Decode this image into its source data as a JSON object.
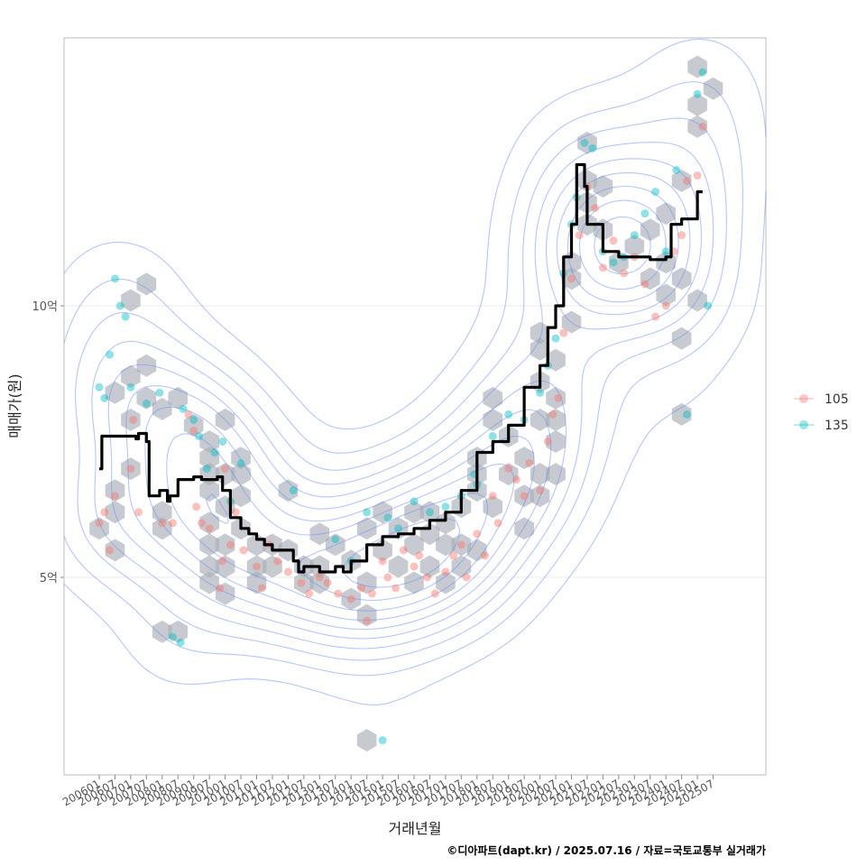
{
  "chart_data": {
    "type": "scatter",
    "xlabel": "거래년월",
    "ylabel": "매매가(원)",
    "caption": "©디아파트(dapt.kr) / 2025.07.16 / 자료=국토교통부 실거래가",
    "x_ticks": [
      "200601",
      "200607",
      "200701",
      "200707",
      "200801",
      "200807",
      "200901",
      "200907",
      "201001",
      "201007",
      "201101",
      "201107",
      "201201",
      "201207",
      "201301",
      "201307",
      "201401",
      "201407",
      "201501",
      "201507",
      "201601",
      "201607",
      "201701",
      "201707",
      "201801",
      "201807",
      "201901",
      "201907",
      "202001",
      "202007",
      "202101",
      "202107",
      "202201",
      "202207",
      "202301",
      "202307",
      "202401",
      "202407",
      "202501",
      "202507"
    ],
    "y_ticks": [
      {
        "value": 5,
        "label": "5억"
      },
      {
        "value": 10,
        "label": "10억"
      }
    ],
    "ylim": [
      1.3,
      14.8
    ],
    "grid": true,
    "legend": {
      "position": "right",
      "entries": [
        {
          "name": "105",
          "color": "#F8766D"
        },
        {
          "name": "135",
          "color": "#00BFC4"
        }
      ]
    },
    "contour_color": "#6C8EF5",
    "hex_color": "#A9AFB8",
    "trend_color": "#000000",
    "trend_line": [
      [
        "200601",
        7.0
      ],
      [
        "200602",
        7.6
      ],
      [
        "200607",
        7.6
      ],
      [
        "200701",
        7.6
      ],
      [
        "200703",
        7.55
      ],
      [
        "200704",
        7.65
      ],
      [
        "200707",
        7.5
      ],
      [
        "200708",
        6.5
      ],
      [
        "200710",
        6.5
      ],
      [
        "200712",
        6.6
      ],
      [
        "200801",
        6.6
      ],
      [
        "200803",
        6.4
      ],
      [
        "200804",
        6.5
      ],
      [
        "200807",
        6.8
      ],
      [
        "200901",
        6.85
      ],
      [
        "200904",
        6.8
      ],
      [
        "200907",
        6.8
      ],
      [
        "200910",
        6.85
      ],
      [
        "200912",
        6.6
      ],
      [
        "201003",
        6.1
      ],
      [
        "201007",
        5.9
      ],
      [
        "201010",
        5.8
      ],
      [
        "201101",
        5.7
      ],
      [
        "201104",
        5.6
      ],
      [
        "201107",
        5.5
      ],
      [
        "201201",
        5.5
      ],
      [
        "201203",
        5.3
      ],
      [
        "201205",
        5.1
      ],
      [
        "201207",
        5.2
      ],
      [
        "201301",
        5.1
      ],
      [
        "201307",
        5.2
      ],
      [
        "201310",
        5.1
      ],
      [
        "201401",
        5.3
      ],
      [
        "201404",
        5.3
      ],
      [
        "201407",
        5.6
      ],
      [
        "201501",
        5.75
      ],
      [
        "201507",
        5.8
      ],
      [
        "201601",
        5.9
      ],
      [
        "201607",
        6.05
      ],
      [
        "201701",
        6.2
      ],
      [
        "201707",
        6.6
      ],
      [
        "201801",
        7.3
      ],
      [
        "201807",
        7.5
      ],
      [
        "201901",
        7.8
      ],
      [
        "201907",
        8.5
      ],
      [
        "202001",
        8.9
      ],
      [
        "202004",
        9.6
      ],
      [
        "202007",
        10.0
      ],
      [
        "202010",
        10.9
      ],
      [
        "202101",
        11.5
      ],
      [
        "202103",
        12.6
      ],
      [
        "202105",
        12.6
      ],
      [
        "202106",
        12.2
      ],
      [
        "202107",
        11.5
      ],
      [
        "202201",
        11.0
      ],
      [
        "202207",
        10.9
      ],
      [
        "202301",
        10.9
      ],
      [
        "202307",
        10.85
      ],
      [
        "202401",
        10.9
      ],
      [
        "202403",
        11.5
      ],
      [
        "202407",
        11.6
      ],
      [
        "202501",
        12.1
      ],
      [
        "202503",
        12.1
      ]
    ],
    "hexbins": [
      [
        "200601",
        5.9
      ],
      [
        "200607",
        6.2
      ],
      [
        "200607",
        6.6
      ],
      [
        "200701",
        7.0
      ],
      [
        "200701",
        7.9
      ],
      [
        "200607",
        8.4
      ],
      [
        "200701",
        8.7
      ],
      [
        "200707",
        8.9
      ],
      [
        "200701",
        10.1
      ],
      [
        "200707",
        10.4
      ],
      [
        "200607",
        5.5
      ],
      [
        "200801",
        6.2
      ],
      [
        "200801",
        5.9
      ],
      [
        "200707",
        8.3
      ],
      [
        "200801",
        8.1
      ],
      [
        "200807",
        8.3
      ],
      [
        "200901",
        7.8
      ],
      [
        "200907",
        7.5
      ],
      [
        "200907",
        7.2
      ],
      [
        "200907",
        6.9
      ],
      [
        "200907",
        6.6
      ],
      [
        "201001",
        6.9
      ],
      [
        "201001",
        6.3
      ],
      [
        "200907",
        6.0
      ],
      [
        "200907",
        5.6
      ],
      [
        "201001",
        5.6
      ],
      [
        "201001",
        5.2
      ],
      [
        "200907",
        5.2
      ],
      [
        "200907",
        4.9
      ],
      [
        "201001",
        4.7
      ],
      [
        "201001",
        7.9
      ],
      [
        "201007",
        7.2
      ],
      [
        "201007",
        6.9
      ],
      [
        "201007",
        6.5
      ],
      [
        "201007",
        5.9
      ],
      [
        "201101",
        5.6
      ],
      [
        "201101",
        5.2
      ],
      [
        "201101",
        4.9
      ],
      [
        "201107",
        5.6
      ],
      [
        "201107",
        5.2
      ],
      [
        "201201",
        5.5
      ],
      [
        "201201",
        6.6
      ],
      [
        "201207",
        5.2
      ],
      [
        "201207",
        4.9
      ],
      [
        "201301",
        5.2
      ],
      [
        "201301",
        4.9
      ],
      [
        "201301",
        5.8
      ],
      [
        "201307",
        5.6
      ],
      [
        "201401",
        4.6
      ],
      [
        "201401",
        5.3
      ],
      [
        "201407",
        4.3
      ],
      [
        "201407",
        4.9
      ],
      [
        "201407",
        5.9
      ],
      [
        "201501",
        6.2
      ],
      [
        "201501",
        5.5
      ],
      [
        "201507",
        5.2
      ],
      [
        "201507",
        5.9
      ],
      [
        "201601",
        5.6
      ],
      [
        "201601",
        6.2
      ],
      [
        "201601",
        4.9
      ],
      [
        "201607",
        5.2
      ],
      [
        "201607",
        5.8
      ],
      [
        "201607",
        6.2
      ],
      [
        "201701",
        5.6
      ],
      [
        "201701",
        6.0
      ],
      [
        "201701",
        4.9
      ],
      [
        "201707",
        5.2
      ],
      [
        "201707",
        5.6
      ],
      [
        "201707",
        6.3
      ],
      [
        "201801",
        5.5
      ],
      [
        "201801",
        6.6
      ],
      [
        "201801",
        6.9
      ],
      [
        "201801",
        7.2
      ],
      [
        "201807",
        6.3
      ],
      [
        "201807",
        7.9
      ],
      [
        "201807",
        8.3
      ],
      [
        "201901",
        7.6
      ],
      [
        "201901",
        6.9
      ],
      [
        "201907",
        7.2
      ],
      [
        "201907",
        6.5
      ],
      [
        "201907",
        5.9
      ],
      [
        "202001",
        6.9
      ],
      [
        "202001",
        6.5
      ],
      [
        "202001",
        7.9
      ],
      [
        "202001",
        8.6
      ],
      [
        "202001",
        9.2
      ],
      [
        "202001",
        9.5
      ],
      [
        "202007",
        7.5
      ],
      [
        "202007",
        7.9
      ],
      [
        "202007",
        8.3
      ],
      [
        "202007",
        9.0
      ],
      [
        "202007",
        6.9
      ],
      [
        "202101",
        9.7
      ],
      [
        "202101",
        10.5
      ],
      [
        "202101",
        10.8
      ],
      [
        "202107",
        11.5
      ],
      [
        "202107",
        11.9
      ],
      [
        "202107",
        12.3
      ],
      [
        "202107",
        13.0
      ],
      [
        "202201",
        12.2
      ],
      [
        "202201",
        11.4
      ],
      [
        "202207",
        10.8
      ],
      [
        "202301",
        11.1
      ],
      [
        "202307",
        10.5
      ],
      [
        "202307",
        11.4
      ],
      [
        "202401",
        10.2
      ],
      [
        "202401",
        10.8
      ],
      [
        "202401",
        11.7
      ],
      [
        "202407",
        12.3
      ],
      [
        "202407",
        10.5
      ],
      [
        "202407",
        9.4
      ],
      [
        "202407",
        8.0
      ],
      [
        "202501",
        10.1
      ],
      [
        "202501",
        13.3
      ],
      [
        "202501",
        13.7
      ],
      [
        "202501",
        14.4
      ],
      [
        "202507",
        14.0
      ],
      [
        "201407",
        2.0
      ],
      [
        "200801",
        4.0
      ],
      [
        "200807",
        4.0
      ]
    ],
    "points_105": [
      [
        "200601",
        6.0
      ],
      [
        "200603",
        6.2
      ],
      [
        "200605",
        5.5
      ],
      [
        "200607",
        6.5
      ],
      [
        "200701",
        7.0
      ],
      [
        "200702",
        7.9
      ],
      [
        "200704",
        6.2
      ],
      [
        "200801",
        6.0
      ],
      [
        "200805",
        6.0
      ],
      [
        "200811",
        8.0
      ],
      [
        "200901",
        7.7
      ],
      [
        "200902",
        6.3
      ],
      [
        "200904",
        6.0
      ],
      [
        "200907",
        5.9
      ],
      [
        "200911",
        4.8
      ],
      [
        "200912",
        5.3
      ],
      [
        "201001",
        7.0
      ],
      [
        "201003",
        5.6
      ],
      [
        "201005",
        6.2
      ],
      [
        "201008",
        5.5
      ],
      [
        "201101",
        5.2
      ],
      [
        "201103",
        4.8
      ],
      [
        "201106",
        5.6
      ],
      [
        "201109",
        5.3
      ],
      [
        "201201",
        5.1
      ],
      [
        "201206",
        4.9
      ],
      [
        "201209",
        4.7
      ],
      [
        "201301",
        5.0
      ],
      [
        "201304",
        4.9
      ],
      [
        "201308",
        4.7
      ],
      [
        "201401",
        4.6
      ],
      [
        "201405",
        4.8
      ],
      [
        "201407",
        4.2
      ],
      [
        "201409",
        4.7
      ],
      [
        "201501",
        5.3
      ],
      [
        "201503",
        5.0
      ],
      [
        "201506",
        4.8
      ],
      [
        "201509",
        5.5
      ],
      [
        "201601",
        5.2
      ],
      [
        "201603",
        5.4
      ],
      [
        "201606",
        5.0
      ],
      [
        "201609",
        4.7
      ],
      [
        "201701",
        5.1
      ],
      [
        "201704",
        5.4
      ],
      [
        "201707",
        5.6
      ],
      [
        "201709",
        5.0
      ],
      [
        "201801",
        5.8
      ],
      [
        "201804",
        5.4
      ],
      [
        "201807",
        6.5
      ],
      [
        "201809",
        6.0
      ],
      [
        "201901",
        7.0
      ],
      [
        "201904",
        6.8
      ],
      [
        "201907",
        6.5
      ],
      [
        "201909",
        7.1
      ],
      [
        "202001",
        6.6
      ],
      [
        "202004",
        7.5
      ],
      [
        "202006",
        8.0
      ],
      [
        "202008",
        8.3
      ],
      [
        "202010",
        9.5
      ],
      [
        "202101",
        10.5
      ],
      [
        "202104",
        11.3
      ],
      [
        "202107",
        12.2
      ],
      [
        "202110",
        11.8
      ],
      [
        "202201",
        10.7
      ],
      [
        "202205",
        11.2
      ],
      [
        "202209",
        10.6
      ],
      [
        "202301",
        10.9
      ],
      [
        "202305",
        10.4
      ],
      [
        "202309",
        9.8
      ],
      [
        "202401",
        10.0
      ],
      [
        "202404",
        11.0
      ],
      [
        "202407",
        11.3
      ],
      [
        "202409",
        12.3
      ],
      [
        "202501",
        12.4
      ],
      [
        "202503",
        13.3
      ]
    ],
    "points_135": [
      [
        "200601",
        8.5
      ],
      [
        "200603",
        8.3
      ],
      [
        "200605",
        9.1
      ],
      [
        "200607",
        10.5
      ],
      [
        "200609",
        10.0
      ],
      [
        "200611",
        9.8
      ],
      [
        "200701",
        8.5
      ],
      [
        "200707",
        8.2
      ],
      [
        "200712",
        8.4
      ],
      [
        "200805",
        3.9
      ],
      [
        "200808",
        3.8
      ],
      [
        "200809",
        8.1
      ],
      [
        "200901",
        7.9
      ],
      [
        "200903",
        7.6
      ],
      [
        "200906",
        7.0
      ],
      [
        "200909",
        7.3
      ],
      [
        "200912",
        7.5
      ],
      [
        "201003",
        6.4
      ],
      [
        "201007",
        7.1
      ],
      [
        "201203",
        6.6
      ],
      [
        "201307",
        5.7
      ],
      [
        "201401",
        5.3
      ],
      [
        "201407",
        6.2
      ],
      [
        "201501",
        2.0
      ],
      [
        "201503",
        6.1
      ],
      [
        "201507",
        5.9
      ],
      [
        "201601",
        6.4
      ],
      [
        "201607",
        6.2
      ],
      [
        "201701",
        6.3
      ],
      [
        "201707",
        6.5
      ],
      [
        "201712",
        6.9
      ],
      [
        "201801",
        6.7
      ],
      [
        "201807",
        7.6
      ],
      [
        "201901",
        8.0
      ],
      [
        "201907",
        7.9
      ],
      [
        "202001",
        8.4
      ],
      [
        "202004",
        8.9
      ],
      [
        "202007",
        9.4
      ],
      [
        "202010",
        10.6
      ],
      [
        "202101",
        11.5
      ],
      [
        "202103",
        12.0
      ],
      [
        "202106",
        13.0
      ],
      [
        "202109",
        12.9
      ],
      [
        "202201",
        11.0
      ],
      [
        "202205",
        10.8
      ],
      [
        "202209",
        10.9
      ],
      [
        "202301",
        11.3
      ],
      [
        "202305",
        11.7
      ],
      [
        "202309",
        12.1
      ],
      [
        "202401",
        11.0
      ],
      [
        "202405",
        12.5
      ],
      [
        "202409",
        8.0
      ],
      [
        "202501",
        13.9
      ],
      [
        "202503",
        14.3
      ],
      [
        "202505",
        10.0
      ]
    ]
  }
}
